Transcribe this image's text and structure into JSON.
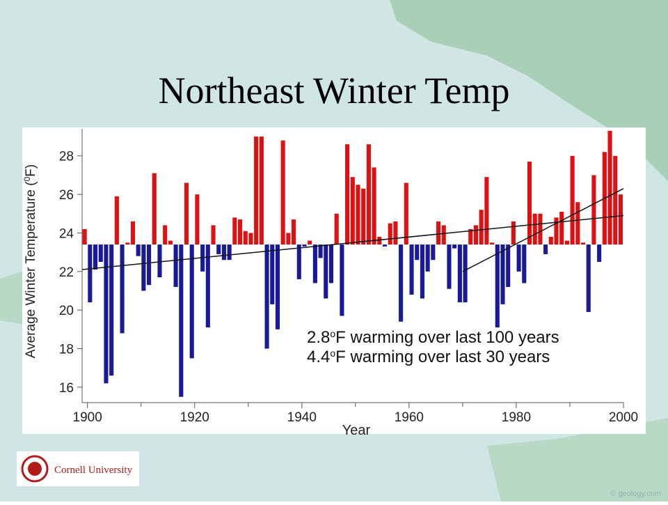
{
  "slide": {
    "title": "Northeast Winter Temp",
    "logo_text": "Cornell University",
    "watermark": "© geology.com"
  },
  "chart_data": {
    "type": "bar",
    "x_label": "Year",
    "y_label": [
      "Average Winter Temperature (",
      "0",
      "F)"
    ],
    "annotations": [
      [
        "2.8",
        "o",
        "F warming over last 100  years"
      ],
      [
        "4.4",
        "o",
        "F warming over last 30 years"
      ]
    ],
    "x": [
      1899,
      1900,
      1901,
      1902,
      1903,
      1904,
      1905,
      1906,
      1907,
      1908,
      1909,
      1910,
      1911,
      1912,
      1913,
      1914,
      1915,
      1916,
      1917,
      1918,
      1919,
      1920,
      1921,
      1922,
      1923,
      1924,
      1925,
      1926,
      1927,
      1928,
      1929,
      1930,
      1931,
      1932,
      1933,
      1934,
      1935,
      1936,
      1937,
      1938,
      1939,
      1940,
      1941,
      1942,
      1943,
      1944,
      1945,
      1946,
      1947,
      1948,
      1949,
      1950,
      1951,
      1952,
      1953,
      1954,
      1955,
      1956,
      1957,
      1958,
      1959,
      1960,
      1961,
      1962,
      1963,
      1964,
      1965,
      1966,
      1967,
      1968,
      1969,
      1970,
      1971,
      1972,
      1973,
      1974,
      1975,
      1976,
      1977,
      1978,
      1979,
      1980,
      1981,
      1982,
      1983,
      1984,
      1985,
      1986,
      1987,
      1988,
      1989,
      1990,
      1991,
      1992,
      1993,
      1994,
      1995,
      1996,
      1997,
      1998,
      1999
    ],
    "values": [
      24.2,
      20.4,
      22.1,
      22.5,
      16.2,
      16.6,
      25.9,
      18.8,
      23.5,
      24.6,
      22.8,
      21.0,
      21.3,
      27.1,
      21.7,
      24.4,
      23.6,
      21.2,
      15.5,
      26.6,
      17.5,
      26.0,
      22.0,
      19.1,
      24.4,
      22.9,
      22.6,
      22.6,
      24.8,
      24.7,
      24.1,
      24.0,
      29.0,
      29.0,
      18.0,
      20.3,
      19.0,
      28.8,
      24.0,
      24.7,
      21.6,
      23.3,
      23.6,
      21.4,
      22.7,
      20.6,
      21.4,
      25.0,
      19.7,
      28.6,
      26.9,
      26.5,
      26.3,
      28.6,
      27.4,
      23.8,
      23.3,
      24.5,
      24.6,
      19.4,
      26.6,
      20.8,
      22.6,
      20.6,
      22.0,
      22.6,
      24.6,
      24.4,
      21.1,
      23.2,
      20.4,
      20.4,
      24.2,
      24.4,
      25.2,
      26.9,
      23.5,
      19.1,
      20.3,
      21.2,
      24.6,
      22.0,
      21.4,
      27.7,
      25.0,
      25.0,
      22.9,
      23.8,
      24.8,
      25.1,
      23.6,
      28.0,
      25.6,
      23.5,
      19.9,
      27.0,
      22.5,
      28.2,
      29.3,
      28.0,
      26.0
    ],
    "baseline": 23.4,
    "above_color": "#dd1111",
    "below_color": "#1a1a99",
    "trend_lines": [
      {
        "x": [
          1899,
          2000
        ],
        "values": [
          22.1,
          24.9
        ]
      },
      {
        "x": [
          1970,
          2000
        ],
        "values": [
          22.0,
          26.3
        ]
      }
    ],
    "trend_color": "#111111",
    "xlim": [
      1899,
      2000
    ],
    "xticks": [
      1900,
      1920,
      1940,
      1960,
      1980,
      2000
    ],
    "x_minor_ticks": [
      1910,
      1930,
      1950,
      1970,
      1990
    ],
    "ylim": [
      15.2,
      29.4
    ],
    "yticks": [
      16,
      18,
      20,
      22,
      24,
      26,
      28
    ]
  }
}
